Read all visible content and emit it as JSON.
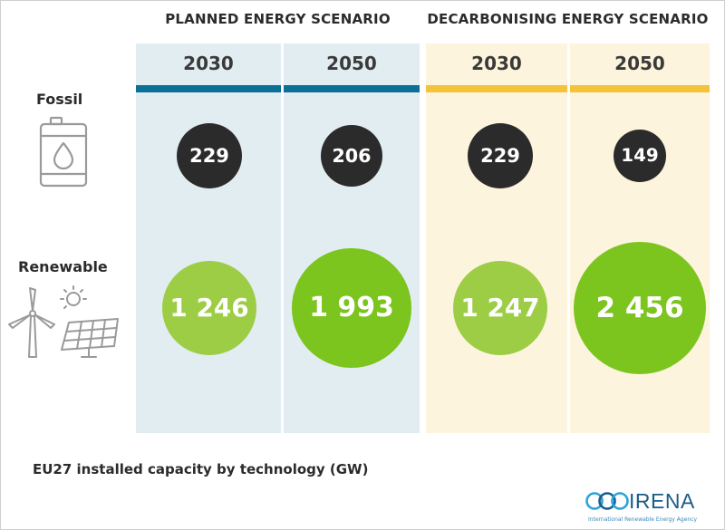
{
  "chart_data": {
    "type": "bubble-table",
    "scenarios": [
      {
        "name": "PLANNED ENERGY SCENARIO",
        "accent_color": "#0b6f96",
        "bg_color": "#e2edf2"
      },
      {
        "name": "DECARBONISING ENERGY SCENARIO",
        "accent_color": "#f4c33b",
        "bg_color": "#fcf4dc"
      }
    ],
    "years": [
      "2030",
      "2050",
      "2030",
      "2050"
    ],
    "series": [
      {
        "name": "Fossil",
        "color": "#2b2b2b",
        "values": [
          229,
          206,
          229,
          149
        ],
        "labels": [
          "229",
          "206",
          "229",
          "149"
        ]
      },
      {
        "name": "Renewable",
        "colors": [
          "#9ccd45",
          "#7cc41e",
          "#9ccd45",
          "#7cc41e"
        ],
        "values": [
          1246,
          1993,
          1247,
          2456
        ],
        "labels": [
          "1 246",
          "1 993",
          "1 247",
          "2 456"
        ]
      }
    ],
    "unit": "GW",
    "caption": "EU27 installed capacity by technology (GW)"
  },
  "logo": {
    "name": "IRENA",
    "subtitle": "International Renewable Energy Agency",
    "color": "#1a5c8a"
  },
  "icons": {
    "fossil": "oil-barrel-icon",
    "renewable": "wind-turbine-solar-panel-icon"
  }
}
